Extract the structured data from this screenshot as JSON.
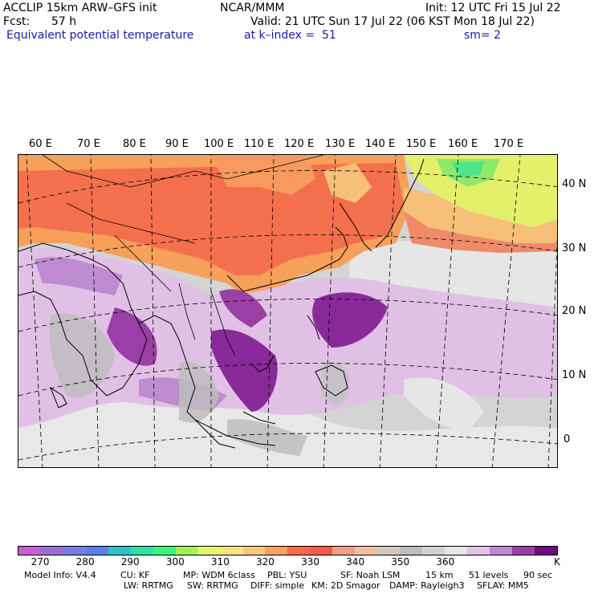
{
  "header": {
    "model": "ACCLIP 15km ARW–GFS init",
    "org": "NCAR/MMM",
    "init": "Init: 12 UTC Fri 15 Jul 22",
    "fcst_label": "Fcst:",
    "fcst_value": "57 h",
    "valid": "Valid: 21 UTC Sun 17 Jul 22 (06 KST Mon 18 Jul 22)",
    "field": "Equivalent potential temperature",
    "level": "at k–index =  51",
    "smoothing": "sm= 2"
  },
  "map": {
    "lon_labels": [
      "60 E",
      "70 E",
      "80 E",
      "90 E",
      "100 E",
      "110 E",
      "120 E",
      "130 E",
      "140 E",
      "150 E",
      "160 E",
      "170 E"
    ],
    "lat_labels": [
      "40 N",
      "30 N",
      "20 N",
      "10 N",
      "0"
    ],
    "region": "Asia and western Pacific"
  },
  "colorbar": {
    "colors": [
      "#c65fd0",
      "#9a6fd6",
      "#7b7be6",
      "#5a7fe8",
      "#2ec0c8",
      "#2ee0a0",
      "#3ef27a",
      "#a4f05c",
      "#e6f56a",
      "#f6e27e",
      "#f8c878",
      "#f8a25c",
      "#f66a4c",
      "#f45a48",
      "#f29e84",
      "#eec0a8",
      "#cfc8c2",
      "#bdbdbd",
      "#d2d2d2",
      "#e6e6e6",
      "#e2c2e6",
      "#be8ad0",
      "#9a3fa6",
      "#6c0a80"
    ],
    "ticks": [
      "270",
      "280",
      "290",
      "300",
      "310",
      "320",
      "330",
      "340",
      "350",
      "360"
    ],
    "unit": "K"
  },
  "footer": {
    "model_info": "Model Info: V4.4",
    "cu": "CU: KF",
    "mp": "MP: WDM 6class",
    "pbl": "PBL: YSU",
    "sf": "SF: Noah LSM",
    "res": "15 km",
    "levels": "51 levels",
    "dt": "90 sec",
    "lw": "LW: RRTMG",
    "sw": "SW: RRTMG",
    "diff": "DIFF: simple",
    "km": "KM: 2D Smagor",
    "damp": "DAMP: Rayleigh3",
    "sflay": "SFLAY: MM5"
  }
}
